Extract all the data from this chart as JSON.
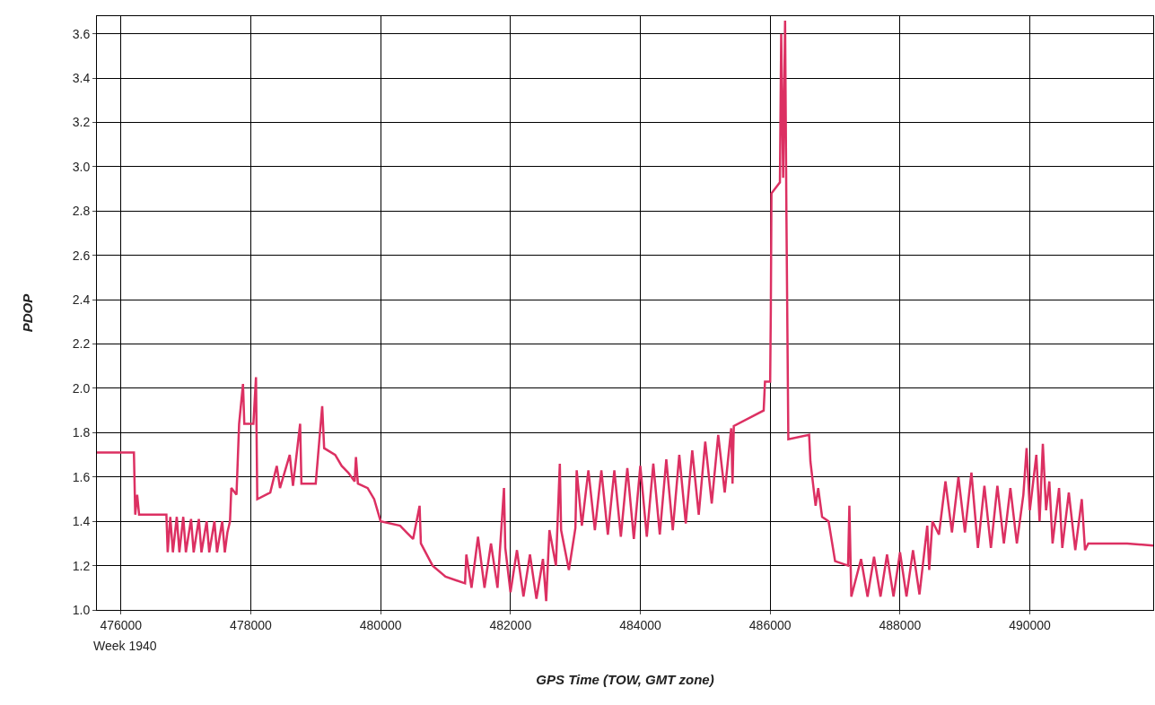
{
  "chart_data": {
    "type": "line",
    "xlabel": "GPS Time (TOW, GMT zone)",
    "ylabel": "PDOP",
    "annotations": [
      "Week 1940"
    ],
    "grid": true,
    "marker": "none",
    "line_style": "solid",
    "xlim": [
      475630,
      491900
    ],
    "xticks": [
      476000,
      478000,
      480000,
      482000,
      484000,
      486000,
      488000,
      490000
    ],
    "ylim": [
      1.0,
      3.68
    ],
    "yticks": [
      {
        "value": 1.0,
        "label": "1.0"
      },
      {
        "value": 1.2,
        "label": "1.2"
      },
      {
        "value": 1.4,
        "label": "1.4"
      },
      {
        "value": 1.6,
        "label": "1.6"
      },
      {
        "value": 1.8,
        "label": "1.8"
      },
      {
        "value": 2.0,
        "label": "2.0"
      },
      {
        "value": 2.2,
        "label": "2.2"
      },
      {
        "value": 2.4,
        "label": "2.4"
      },
      {
        "value": 2.6,
        "label": "2.6"
      },
      {
        "value": 2.8,
        "label": "2.8"
      },
      {
        "value": 3.0,
        "label": "3.0"
      },
      {
        "value": 3.2,
        "label": "3.2"
      },
      {
        "value": 3.4,
        "label": "3.4"
      },
      {
        "value": 3.6,
        "label": "3.6"
      }
    ],
    "series": [
      {
        "color": "#dc3062",
        "x": [
          475630,
          476200,
          476220,
          476250,
          476280,
          476700,
          476720,
          476760,
          476800,
          476860,
          476900,
          476960,
          477000,
          477080,
          477120,
          477200,
          477240,
          477320,
          477360,
          477440,
          477480,
          477560,
          477600,
          477640,
          477680,
          477700,
          477780,
          477820,
          477880,
          477900,
          478040,
          478080,
          478100,
          478300,
          478400,
          478450,
          478600,
          478650,
          478760,
          478780,
          479000,
          479100,
          479130,
          479300,
          479400,
          479500,
          479600,
          479620,
          479650,
          479800,
          479900,
          480000,
          480300,
          480400,
          480500,
          480600,
          480620,
          480800,
          481000,
          481300,
          481320,
          481400,
          481500,
          481600,
          481700,
          481800,
          481900,
          481920,
          482000,
          482100,
          482200,
          482300,
          482400,
          482500,
          482550,
          482600,
          482700,
          482760,
          482780,
          482900,
          483000,
          483020,
          483100,
          483200,
          483300,
          483400,
          483500,
          483600,
          483700,
          483800,
          483900,
          484000,
          484100,
          484200,
          484300,
          484400,
          484500,
          484600,
          484700,
          484800,
          484900,
          485000,
          485100,
          485200,
          485300,
          485400,
          485420,
          485440,
          485900,
          485920,
          486000,
          486010,
          486020,
          486150,
          486170,
          486200,
          486230,
          486250,
          486280,
          486600,
          486620,
          486700,
          486740,
          486800,
          486900,
          487000,
          487200,
          487220,
          487250,
          487400,
          487500,
          487600,
          487700,
          487800,
          487900,
          488000,
          488100,
          488200,
          488300,
          488420,
          488450,
          488500,
          488600,
          488700,
          488800,
          488900,
          489000,
          489100,
          489200,
          489300,
          489400,
          489500,
          489600,
          489700,
          489800,
          489900,
          489950,
          490000,
          490100,
          490150,
          490200,
          490250,
          490300,
          490350,
          490450,
          490500,
          490600,
          490700,
          490800,
          490850,
          490900,
          491500,
          491900
        ],
        "values": [
          1.71,
          1.71,
          1.43,
          1.52,
          1.43,
          1.43,
          1.26,
          1.42,
          1.26,
          1.42,
          1.26,
          1.42,
          1.26,
          1.41,
          1.26,
          1.41,
          1.26,
          1.4,
          1.26,
          1.4,
          1.26,
          1.4,
          1.26,
          1.35,
          1.4,
          1.55,
          1.52,
          1.84,
          2.02,
          1.84,
          1.84,
          2.05,
          1.5,
          1.53,
          1.65,
          1.55,
          1.7,
          1.56,
          1.84,
          1.57,
          1.57,
          1.92,
          1.73,
          1.7,
          1.65,
          1.62,
          1.58,
          1.69,
          1.57,
          1.55,
          1.5,
          1.4,
          1.38,
          1.35,
          1.32,
          1.47,
          1.3,
          1.2,
          1.15,
          1.12,
          1.25,
          1.1,
          1.33,
          1.1,
          1.3,
          1.1,
          1.55,
          1.28,
          1.08,
          1.27,
          1.06,
          1.25,
          1.05,
          1.23,
          1.04,
          1.36,
          1.2,
          1.66,
          1.36,
          1.18,
          1.37,
          1.63,
          1.38,
          1.63,
          1.36,
          1.63,
          1.34,
          1.63,
          1.33,
          1.64,
          1.32,
          1.65,
          1.33,
          1.66,
          1.34,
          1.68,
          1.36,
          1.7,
          1.39,
          1.72,
          1.43,
          1.76,
          1.48,
          1.79,
          1.53,
          1.82,
          1.57,
          1.83,
          1.9,
          2.03,
          2.03,
          2.35,
          2.88,
          2.93,
          3.6,
          2.95,
          3.66,
          2.8,
          1.77,
          1.79,
          1.67,
          1.47,
          1.55,
          1.42,
          1.4,
          1.22,
          1.2,
          1.47,
          1.06,
          1.23,
          1.06,
          1.24,
          1.06,
          1.25,
          1.06,
          1.26,
          1.06,
          1.27,
          1.07,
          1.38,
          1.18,
          1.4,
          1.34,
          1.58,
          1.35,
          1.6,
          1.35,
          1.62,
          1.28,
          1.56,
          1.28,
          1.56,
          1.3,
          1.55,
          1.3,
          1.52,
          1.73,
          1.45,
          1.7,
          1.4,
          1.75,
          1.45,
          1.58,
          1.3,
          1.55,
          1.28,
          1.53,
          1.27,
          1.5,
          1.27,
          1.3,
          1.3,
          1.29
        ]
      }
    ]
  }
}
